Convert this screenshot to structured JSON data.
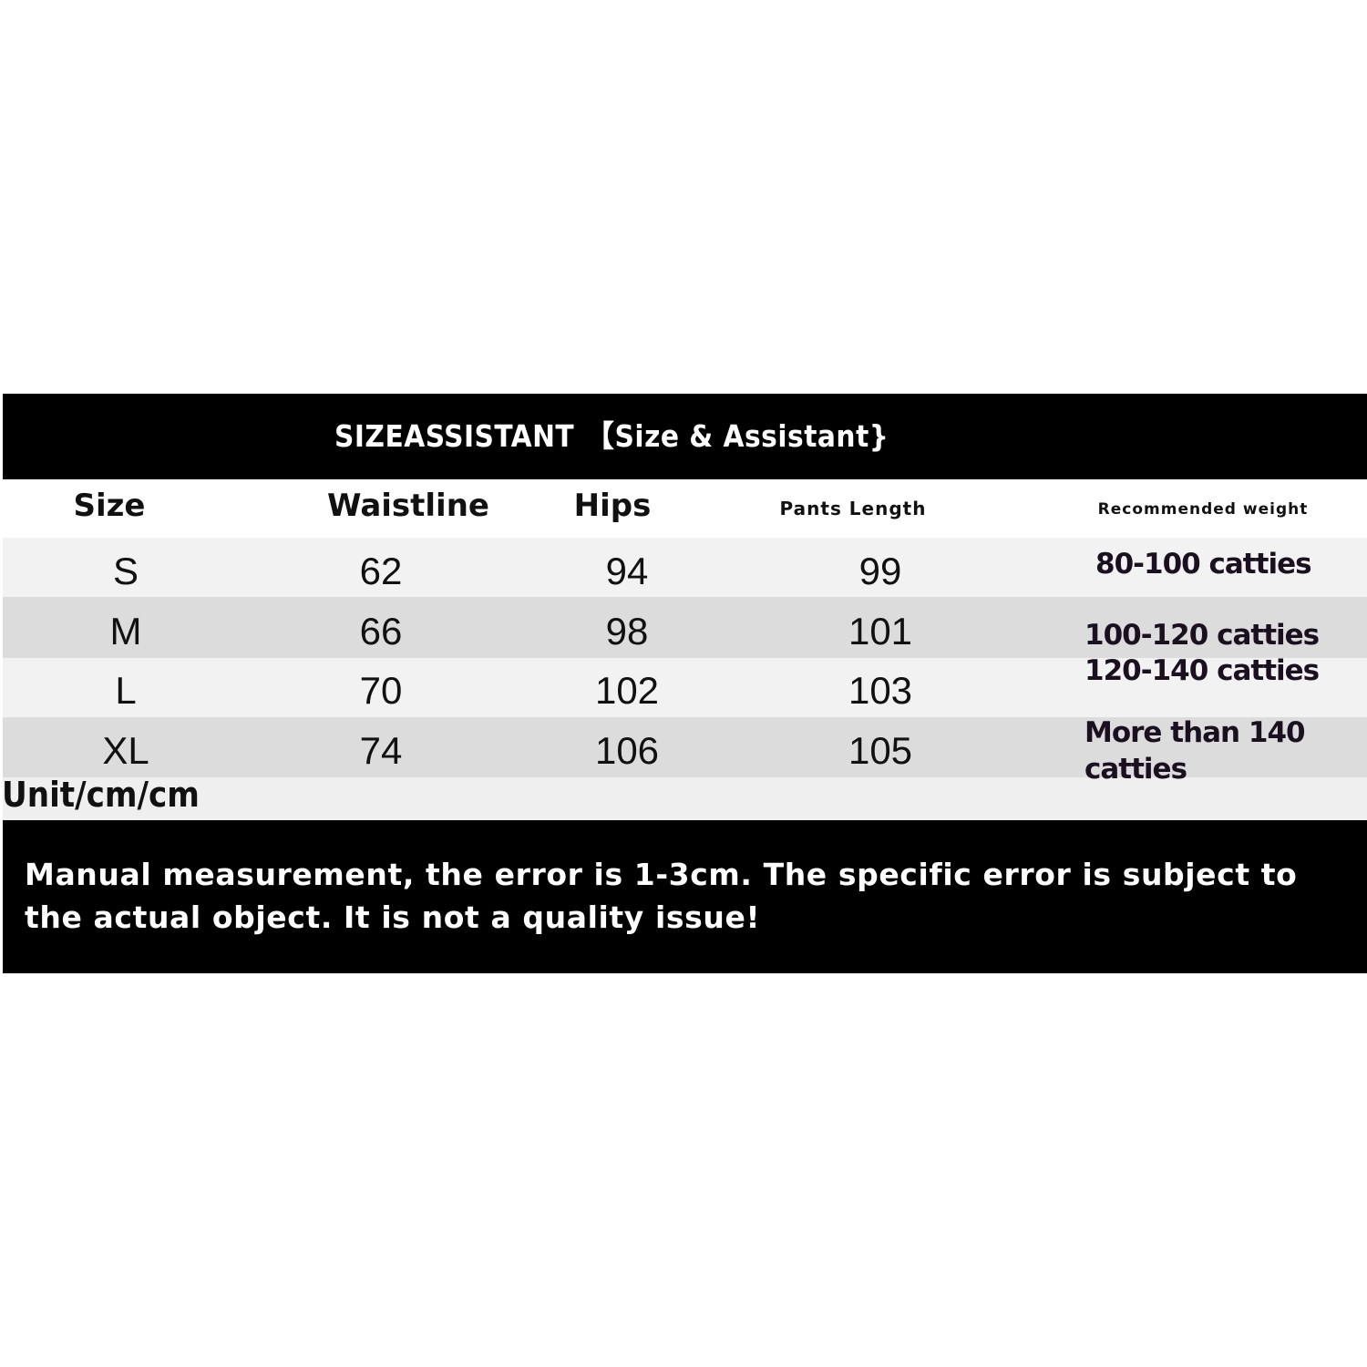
{
  "title": "SIZEASSISTANT 【Size & Assistant}",
  "headers": [
    "Size",
    "Waistline",
    "Hips",
    "Pants Length",
    "Recommended weight"
  ],
  "rows": [
    {
      "size": "S",
      "waistline": "62",
      "hips": "94",
      "pants_length": "99"
    },
    {
      "size": "M",
      "waistline": "66",
      "hips": "98",
      "pants_length": "101"
    },
    {
      "size": "L",
      "waistline": "70",
      "hips": "102",
      "pants_length": "103"
    },
    {
      "size": "XL",
      "waistline": "74",
      "hips": "106",
      "pants_length": "105"
    }
  ],
  "weights": [
    "80-100 catties",
    "100-120 catties",
    "120-140 catties",
    "More than 140",
    "catties"
  ],
  "unit": "Unit/cm/cm",
  "note": "Manual measurement, the error is 1-3cm. The specific error is subject to the actual object. It is not a quality issue!",
  "colors": {
    "bar": "#000000",
    "row_light": "#f2f2f2",
    "row_dark": "#dcdcdc"
  }
}
